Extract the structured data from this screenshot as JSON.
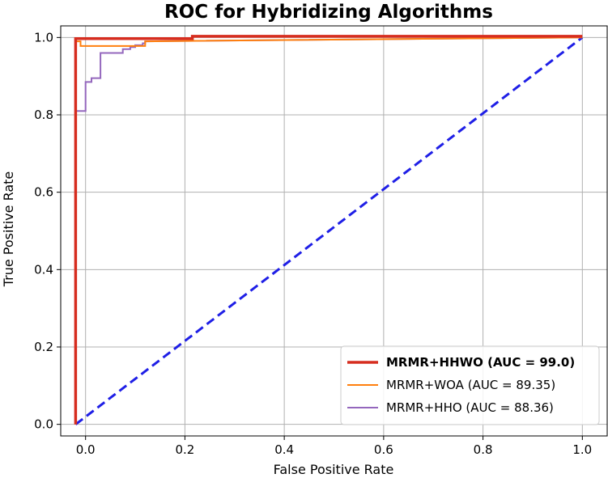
{
  "chart_data": {
    "type": "line",
    "title": "ROC for Hybridizing Algorithms",
    "xlabel": "False Positive Rate",
    "ylabel": "True Positive Rate",
    "xlim": [
      -0.05,
      1.05
    ],
    "ylim": [
      -0.03,
      1.03
    ],
    "x_ticks": [
      "0.0",
      "0.2",
      "0.4",
      "0.6",
      "0.8",
      "1.0"
    ],
    "y_ticks": [
      "0.0",
      "0.2",
      "0.4",
      "0.6",
      "0.8",
      "1.0"
    ],
    "x_tick_values": [
      0.0,
      0.2,
      0.4,
      0.6,
      0.8,
      1.0
    ],
    "y_tick_values": [
      0.0,
      0.2,
      0.4,
      0.6,
      0.8,
      1.0
    ],
    "grid": true,
    "legend_position": "lower-right",
    "series": [
      {
        "name": "MRMR+HHWO (AUC = 99.0)",
        "color": "#d62d1f",
        "bold_label": true,
        "x": [
          -0.02,
          -0.02,
          0.215,
          0.215,
          1.0
        ],
        "y": [
          0.0,
          0.997,
          0.997,
          1.003,
          1.003
        ]
      },
      {
        "name": "MRMR+WOA (AUC = 89.35)",
        "color": "#ff7f0e",
        "bold_label": false,
        "x": [
          -0.02,
          -0.02,
          -0.01,
          -0.01,
          0.12,
          0.12,
          1.0
        ],
        "y": [
          0.0,
          0.99,
          0.99,
          0.978,
          0.978,
          0.99,
          1.0
        ]
      },
      {
        "name": "MRMR+HHO (AUC = 88.36)",
        "color": "#9467bd",
        "bold_label": false,
        "x": [
          -0.02,
          -0.02,
          -0.01,
          -0.01,
          0.0,
          0.0,
          0.012,
          0.012,
          0.03,
          0.03,
          0.075,
          0.075,
          0.09,
          0.09,
          0.1,
          0.1,
          0.115,
          0.115,
          0.12,
          0.12,
          1.0
        ],
        "y": [
          0.0,
          0.81,
          0.81,
          0.81,
          0.81,
          0.885,
          0.885,
          0.895,
          0.895,
          0.96,
          0.96,
          0.97,
          0.97,
          0.975,
          0.975,
          0.98,
          0.98,
          0.985,
          0.985,
          0.99,
          1.0
        ]
      }
    ],
    "reference_line": {
      "x": [
        -0.02,
        1.0
      ],
      "y": [
        0.0,
        1.0
      ],
      "color": "#1f1fe6",
      "style": "dashed"
    }
  }
}
